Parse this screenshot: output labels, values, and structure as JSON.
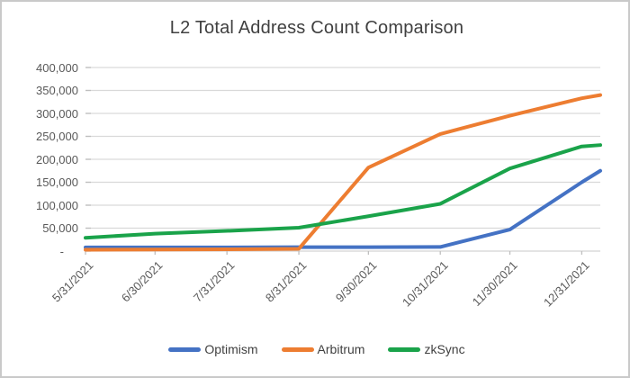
{
  "window": {
    "background": "#ffffff",
    "border_color": "#c9c9c9"
  },
  "chart_data": {
    "type": "line",
    "title": "L2 Total Address Count Comparison",
    "xlabel": "",
    "ylabel": "",
    "x_axis_kind": "date",
    "x_tick_labels": [
      "5/31/2021",
      "6/30/2021",
      "7/31/2021",
      "8/31/2021",
      "9/30/2021",
      "10/31/2021",
      "11/30/2021",
      "12/31/2021"
    ],
    "x_tick_days": [
      0,
      30,
      61,
      92,
      122,
      153,
      183,
      214
    ],
    "x_axis_end_day": 222,
    "ylim": [
      0,
      400000
    ],
    "y_ticks": [
      {
        "label": "400,000",
        "value": 400000
      },
      {
        "label": "350,000",
        "value": 350000
      },
      {
        "label": "300,000",
        "value": 300000
      },
      {
        "label": "250,000",
        "value": 250000
      },
      {
        "label": "200,000",
        "value": 200000
      },
      {
        "label": "150,000",
        "value": 150000
      },
      {
        "label": "100,000",
        "value": 100000
      },
      {
        "label": "50,000",
        "value": 50000
      },
      {
        "label": "-",
        "value": 0
      }
    ],
    "grid": "horizontal",
    "legend_position": "bottom",
    "series": [
      {
        "name": "Optimism",
        "color": "#4472C4",
        "x_days": [
          0,
          30,
          61,
          92,
          122,
          153,
          183,
          214,
          222
        ],
        "values": [
          8000,
          8000,
          8000,
          8500,
          8500,
          9000,
          47000,
          150000,
          175000
        ]
      },
      {
        "name": "Arbitrum",
        "color": "#ED7D31",
        "x_days": [
          0,
          30,
          61,
          92,
          122,
          153,
          183,
          214,
          222
        ],
        "values": [
          3000,
          3500,
          4000,
          5000,
          182000,
          255000,
          295000,
          333000,
          340000
        ]
      },
      {
        "name": "zkSync",
        "color": "#1AA34A",
        "x_days": [
          0,
          30,
          61,
          92,
          122,
          153,
          183,
          214,
          222
        ],
        "values": [
          29000,
          38000,
          44000,
          51000,
          76000,
          103000,
          180000,
          228000,
          231000
        ]
      }
    ],
    "colors": {
      "gridline": "#d9d9d9",
      "axis_line": "#d3d3d3",
      "tick_mark": "#bfbfbf",
      "axis_text": "#595959",
      "title_text": "#404040",
      "legend_text": "#404040"
    }
  }
}
